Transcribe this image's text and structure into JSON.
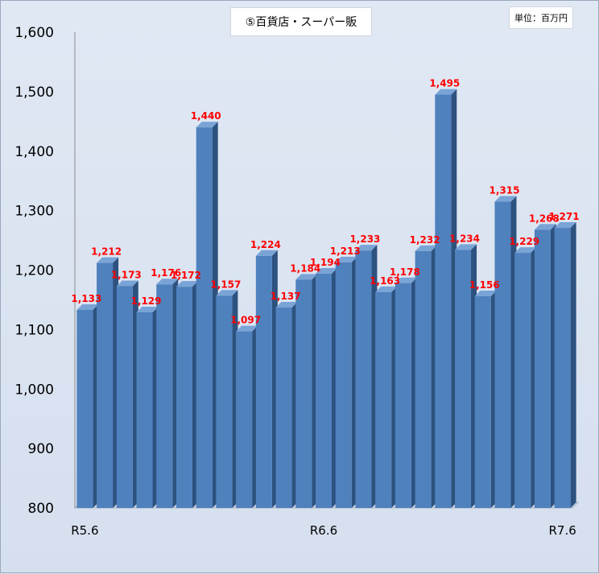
{
  "chart_data": {
    "type": "bar",
    "title": "⑤百貨店・スーパー販",
    "unit_label": "単位：百万円",
    "ylim": [
      800,
      1600
    ],
    "yticks": [
      "800",
      "900",
      "1,000",
      "1,100",
      "1,200",
      "1,300",
      "1,400",
      "1,500",
      "1,600"
    ],
    "xtick_labels": [
      {
        "index": 0,
        "label": "R5.6"
      },
      {
        "index": 12,
        "label": "R6.6"
      },
      {
        "index": 24,
        "label": "R7.6"
      }
    ],
    "values": [
      1133,
      1212,
      1173,
      1129,
      1176,
      1172,
      1440,
      1157,
      1097,
      1224,
      1137,
      1184,
      1194,
      1213,
      1233,
      1163,
      1178,
      1232,
      1495,
      1234,
      1156,
      1315,
      1229,
      1268,
      1271
    ],
    "value_labels": [
      "1,133",
      "1,212",
      "1,173",
      "1,129",
      "1,176",
      "1,172",
      "1,440",
      "1,157",
      "1,097",
      "1,224",
      "1,137",
      "1,184",
      "1,194",
      "1,213",
      "1,233",
      "1,163",
      "1,178",
      "1,232",
      "1,495",
      "1,234",
      "1,156",
      "1,315",
      "1,229",
      "1,268",
      "1,271"
    ],
    "grid": false,
    "legend": "none",
    "colors": {
      "bar_front": "#4f81bd",
      "bar_side": "#2d527f",
      "bar_top": "#7aa3d6",
      "label": "#ff0000"
    }
  }
}
